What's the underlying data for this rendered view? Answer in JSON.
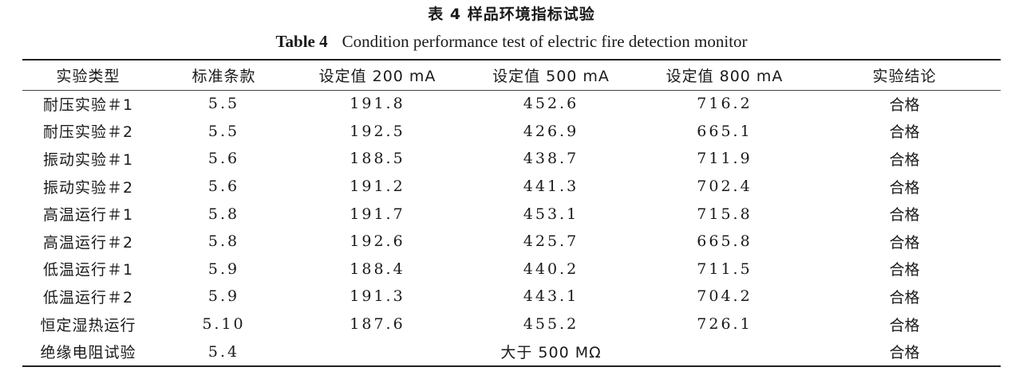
{
  "caption": {
    "cn": "表 4   样品环境指标试验",
    "en_label": "Table 4",
    "en_title": "Condition performance test of electric fire detection monitor"
  },
  "table": {
    "headers": [
      "实验类型",
      "标准条款",
      "设定值 200 mA",
      "设定值 500 mA",
      "设定值 800 mA",
      "实验结论"
    ],
    "rows": [
      {
        "type": "耐压实验＃1",
        "clause": "5.5",
        "v200": "191.8",
        "v500": "452.6",
        "v800": "716.2",
        "result": "合格"
      },
      {
        "type": "耐压实验＃2",
        "clause": "5.5",
        "v200": "192.5",
        "v500": "426.9",
        "v800": "665.1",
        "result": "合格"
      },
      {
        "type": "振动实验＃1",
        "clause": "5.6",
        "v200": "188.5",
        "v500": "438.7",
        "v800": "711.9",
        "result": "合格"
      },
      {
        "type": "振动实验＃2",
        "clause": "5.6",
        "v200": "191.2",
        "v500": "441.3",
        "v800": "702.4",
        "result": "合格"
      },
      {
        "type": "高温运行＃1",
        "clause": "5.8",
        "v200": "191.7",
        "v500": "453.1",
        "v800": "715.8",
        "result": "合格"
      },
      {
        "type": "高温运行＃2",
        "clause": "5.8",
        "v200": "192.6",
        "v500": "425.7",
        "v800": "665.8",
        "result": "合格"
      },
      {
        "type": "低温运行＃1",
        "clause": "5.9",
        "v200": "188.4",
        "v500": "440.2",
        "v800": "711.5",
        "result": "合格"
      },
      {
        "type": "低温运行＃2",
        "clause": "5.9",
        "v200": "191.3",
        "v500": "443.1",
        "v800": "704.2",
        "result": "合格"
      },
      {
        "type": "恒定湿热运行",
        "clause": "5.10",
        "v200": "187.6",
        "v500": "455.2",
        "v800": "726.1",
        "result": "合格"
      }
    ],
    "last_row": {
      "type": "绝缘电阻试验",
      "clause": "5.4",
      "merged_value": "大于 500 MΩ",
      "result": "合格"
    }
  }
}
